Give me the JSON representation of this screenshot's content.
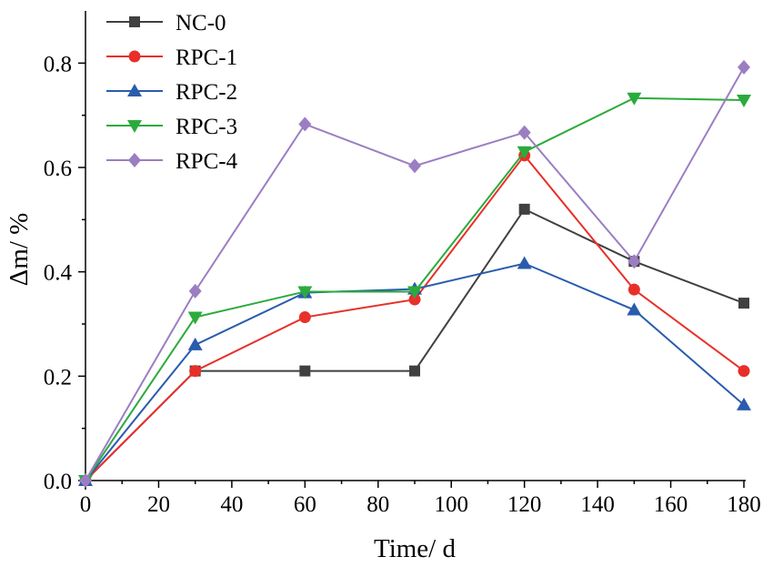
{
  "chart_data": {
    "type": "line",
    "title": "",
    "xlabel": "Time/ d",
    "ylabel": "Δm/ %",
    "xlim": [
      0,
      180
    ],
    "ylim": [
      0,
      0.9
    ],
    "xticks": [
      0,
      20,
      40,
      60,
      80,
      100,
      120,
      140,
      160,
      180
    ],
    "yticks": [
      0.0,
      0.2,
      0.4,
      0.6,
      0.8
    ],
    "x": [
      0,
      30,
      60,
      90,
      120,
      150,
      180
    ],
    "legend_position": "top-left",
    "grid": false,
    "series": [
      {
        "name": "NC-0",
        "marker": "square",
        "color": "#404040",
        "values": [
          0.0,
          0.21,
          0.21,
          0.21,
          0.52,
          0.42,
          0.34
        ]
      },
      {
        "name": "RPC-1",
        "marker": "circle",
        "color": "#e8302a",
        "values": [
          0.0,
          0.21,
          0.313,
          0.347,
          0.623,
          0.366,
          0.21
        ]
      },
      {
        "name": "RPC-2",
        "marker": "triangle-up",
        "color": "#2a5cad",
        "values": [
          0.0,
          0.26,
          0.36,
          0.367,
          0.416,
          0.327,
          0.145
        ]
      },
      {
        "name": "RPC-3",
        "marker": "triangle-down",
        "color": "#2aab3c",
        "values": [
          0.0,
          0.313,
          0.362,
          0.362,
          0.63,
          0.733,
          0.729
        ]
      },
      {
        "name": "RPC-4",
        "marker": "diamond",
        "color": "#9b7ec2",
        "values": [
          0.0,
          0.363,
          0.683,
          0.603,
          0.667,
          0.42,
          0.792
        ]
      }
    ]
  }
}
